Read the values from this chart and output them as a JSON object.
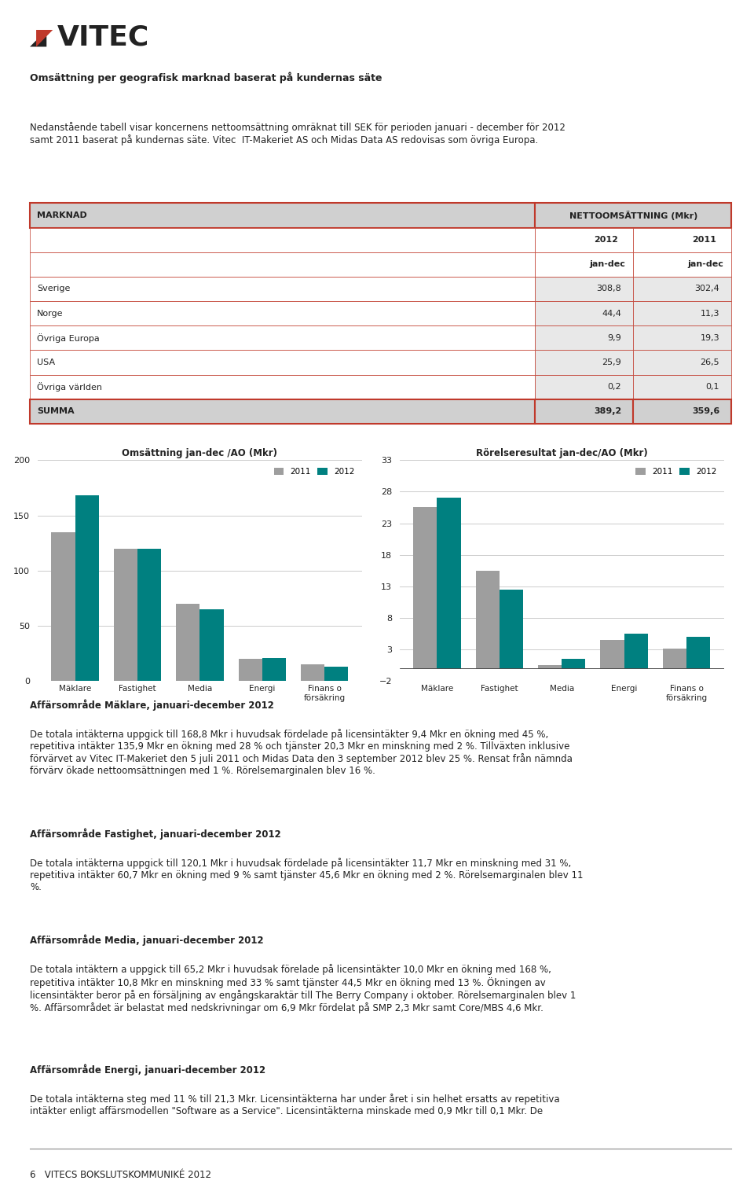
{
  "page_bg": "#ffffff",
  "logo_text": "VITEC",
  "heading": "Omsättning per geografisk marknad baserat på kundernas säte",
  "body_text_1": "Nedanstående tabell visar koncernens nettoomsättning omräknat till SEK för perioden januari - december för 2012\nsamt 2011 baserat på kundernas säte. Vitec  IT-Makeriet AS och Midas Data AS redovisas som övriga Europa.",
  "table_header_left": "MARKNAD",
  "table_header_right": "NETTOOMSÄTTNING (Mkr)",
  "table_col1": "2012",
  "table_col2": "2011",
  "table_col1b": "jan-dec",
  "table_col2b": "jan-dec",
  "table_rows": [
    {
      "label": "Sverige",
      "val2012": "308,8",
      "val2011": "302,4"
    },
    {
      "label": "Norge",
      "val2012": "44,4",
      "val2011": "11,3"
    },
    {
      "label": "Övriga Europa",
      "val2012": "9,9",
      "val2011": "19,3"
    },
    {
      "label": "USA",
      "val2012": "25,9",
      "val2011": "26,5"
    },
    {
      "label": "Övriga världen",
      "val2012": "0,2",
      "val2011": "0,1"
    }
  ],
  "table_summa_label": "SUMMA",
  "table_summa_2012": "389,2",
  "table_summa_2011": "359,6",
  "chart1_title": "Omsättning jan-dec /AO (Mkr)",
  "chart1_categories": [
    "Mäklare",
    "Fastighet",
    "Media",
    "Energi",
    "Finans o\nförsäkring"
  ],
  "chart1_2011": [
    135,
    120,
    70,
    20,
    15
  ],
  "chart1_2012": [
    168,
    120,
    65,
    21,
    13
  ],
  "chart1_ylim": [
    0,
    200
  ],
  "chart1_yticks": [
    0,
    50,
    100,
    150,
    200
  ],
  "chart2_title": "Rörelseresultat jan-dec/AO (Mkr)",
  "chart2_categories": [
    "Mäklare",
    "Fastighet",
    "Media",
    "Energi",
    "Finans o\nförsäkring"
  ],
  "chart2_2011": [
    25.5,
    15.5,
    0.5,
    4.5,
    3.2
  ],
  "chart2_2012": [
    27.0,
    12.5,
    1.5,
    5.5,
    5.0
  ],
  "chart2_ylim": [
    -2,
    33
  ],
  "chart2_yticks": [
    -2,
    3,
    8,
    13,
    18,
    23,
    28,
    33
  ],
  "color_2011": "#9e9e9e",
  "color_2012": "#008080",
  "legend_2011": "2011",
  "legend_2012": "2012",
  "text_color": "#222222",
  "table_border_color": "#c0392b",
  "table_header_bg": "#d0d0d0",
  "table_summa_bg": "#d0d0d0",
  "grid_color": "#cccccc",
  "affarsomrade_texts": [
    {
      "title": "Affärsområde Mäklare, januari-december 2012",
      "body": "De totala intäkterna uppgick till 168,8 Mkr i huvudsak fördelade på licensintäkter 9,4 Mkr en ökning med 45 %,\nrepetitiva intäkter 135,9 Mkr en ökning med 28 % och tjänster 20,3 Mkr en minskning med 2 %. Tillväxten inklusive\nförvärvet av Vitec IT-Makeriet den 5 juli 2011 och Midas Data den 3 september 2012 blev 25 %. Rensat från nämnda\nförvärv ökade nettoomsättningen med 1 %. Rörelsemarginalen blev 16 %."
    },
    {
      "title": "Affärsområde Fastighet, januari-december 2012",
      "body": "De totala intäkterna uppgick till 120,1 Mkr i huvudsak fördelade på licensintäkter 11,7 Mkr en minskning med 31 %,\nrepetitiva intäkter 60,7 Mkr en ökning med 9 % samt tjänster 45,6 Mkr en ökning med 2 %. Rörelsemarginalen blev 11\n%."
    },
    {
      "title": "Affärsområde Media, januari-december 2012",
      "body": "De totala intäktern a uppgick till 65,2 Mkr i huvudsak förelade på licensintäkter 10,0 Mkr en ökning med 168 %,\nrepetitiva intäkter 10,8 Mkr en minskning med 33 % samt tjänster 44,5 Mkr en ökning med 13 %. Ökningen av\nlicensintäkter beror på en försäljning av engångskaraktär till The Berry Company i oktober. Rörelsemarginalen blev 1\n%. Affärsområdet är belastat med nedskrivningar om 6,9 Mkr fördelat på SMP 2,3 Mkr samt Core/MBS 4,6 Mkr."
    },
    {
      "title": "Affärsområde Energi, januari-december 2012",
      "body": "De totala intäkterna steg med 11 % till 21,3 Mkr. Licensintäkterna har under året i sin helhet ersatts av repetitiva\nintäkter enligt affärsmodellen \"Software as a Service\". Licensintäkterna minskade med 0,9 Mkr till 0,1 Mkr. De"
    }
  ],
  "footer_text": "6   VITECS BOKSLUTSKOMMUNIKÉ 2012"
}
